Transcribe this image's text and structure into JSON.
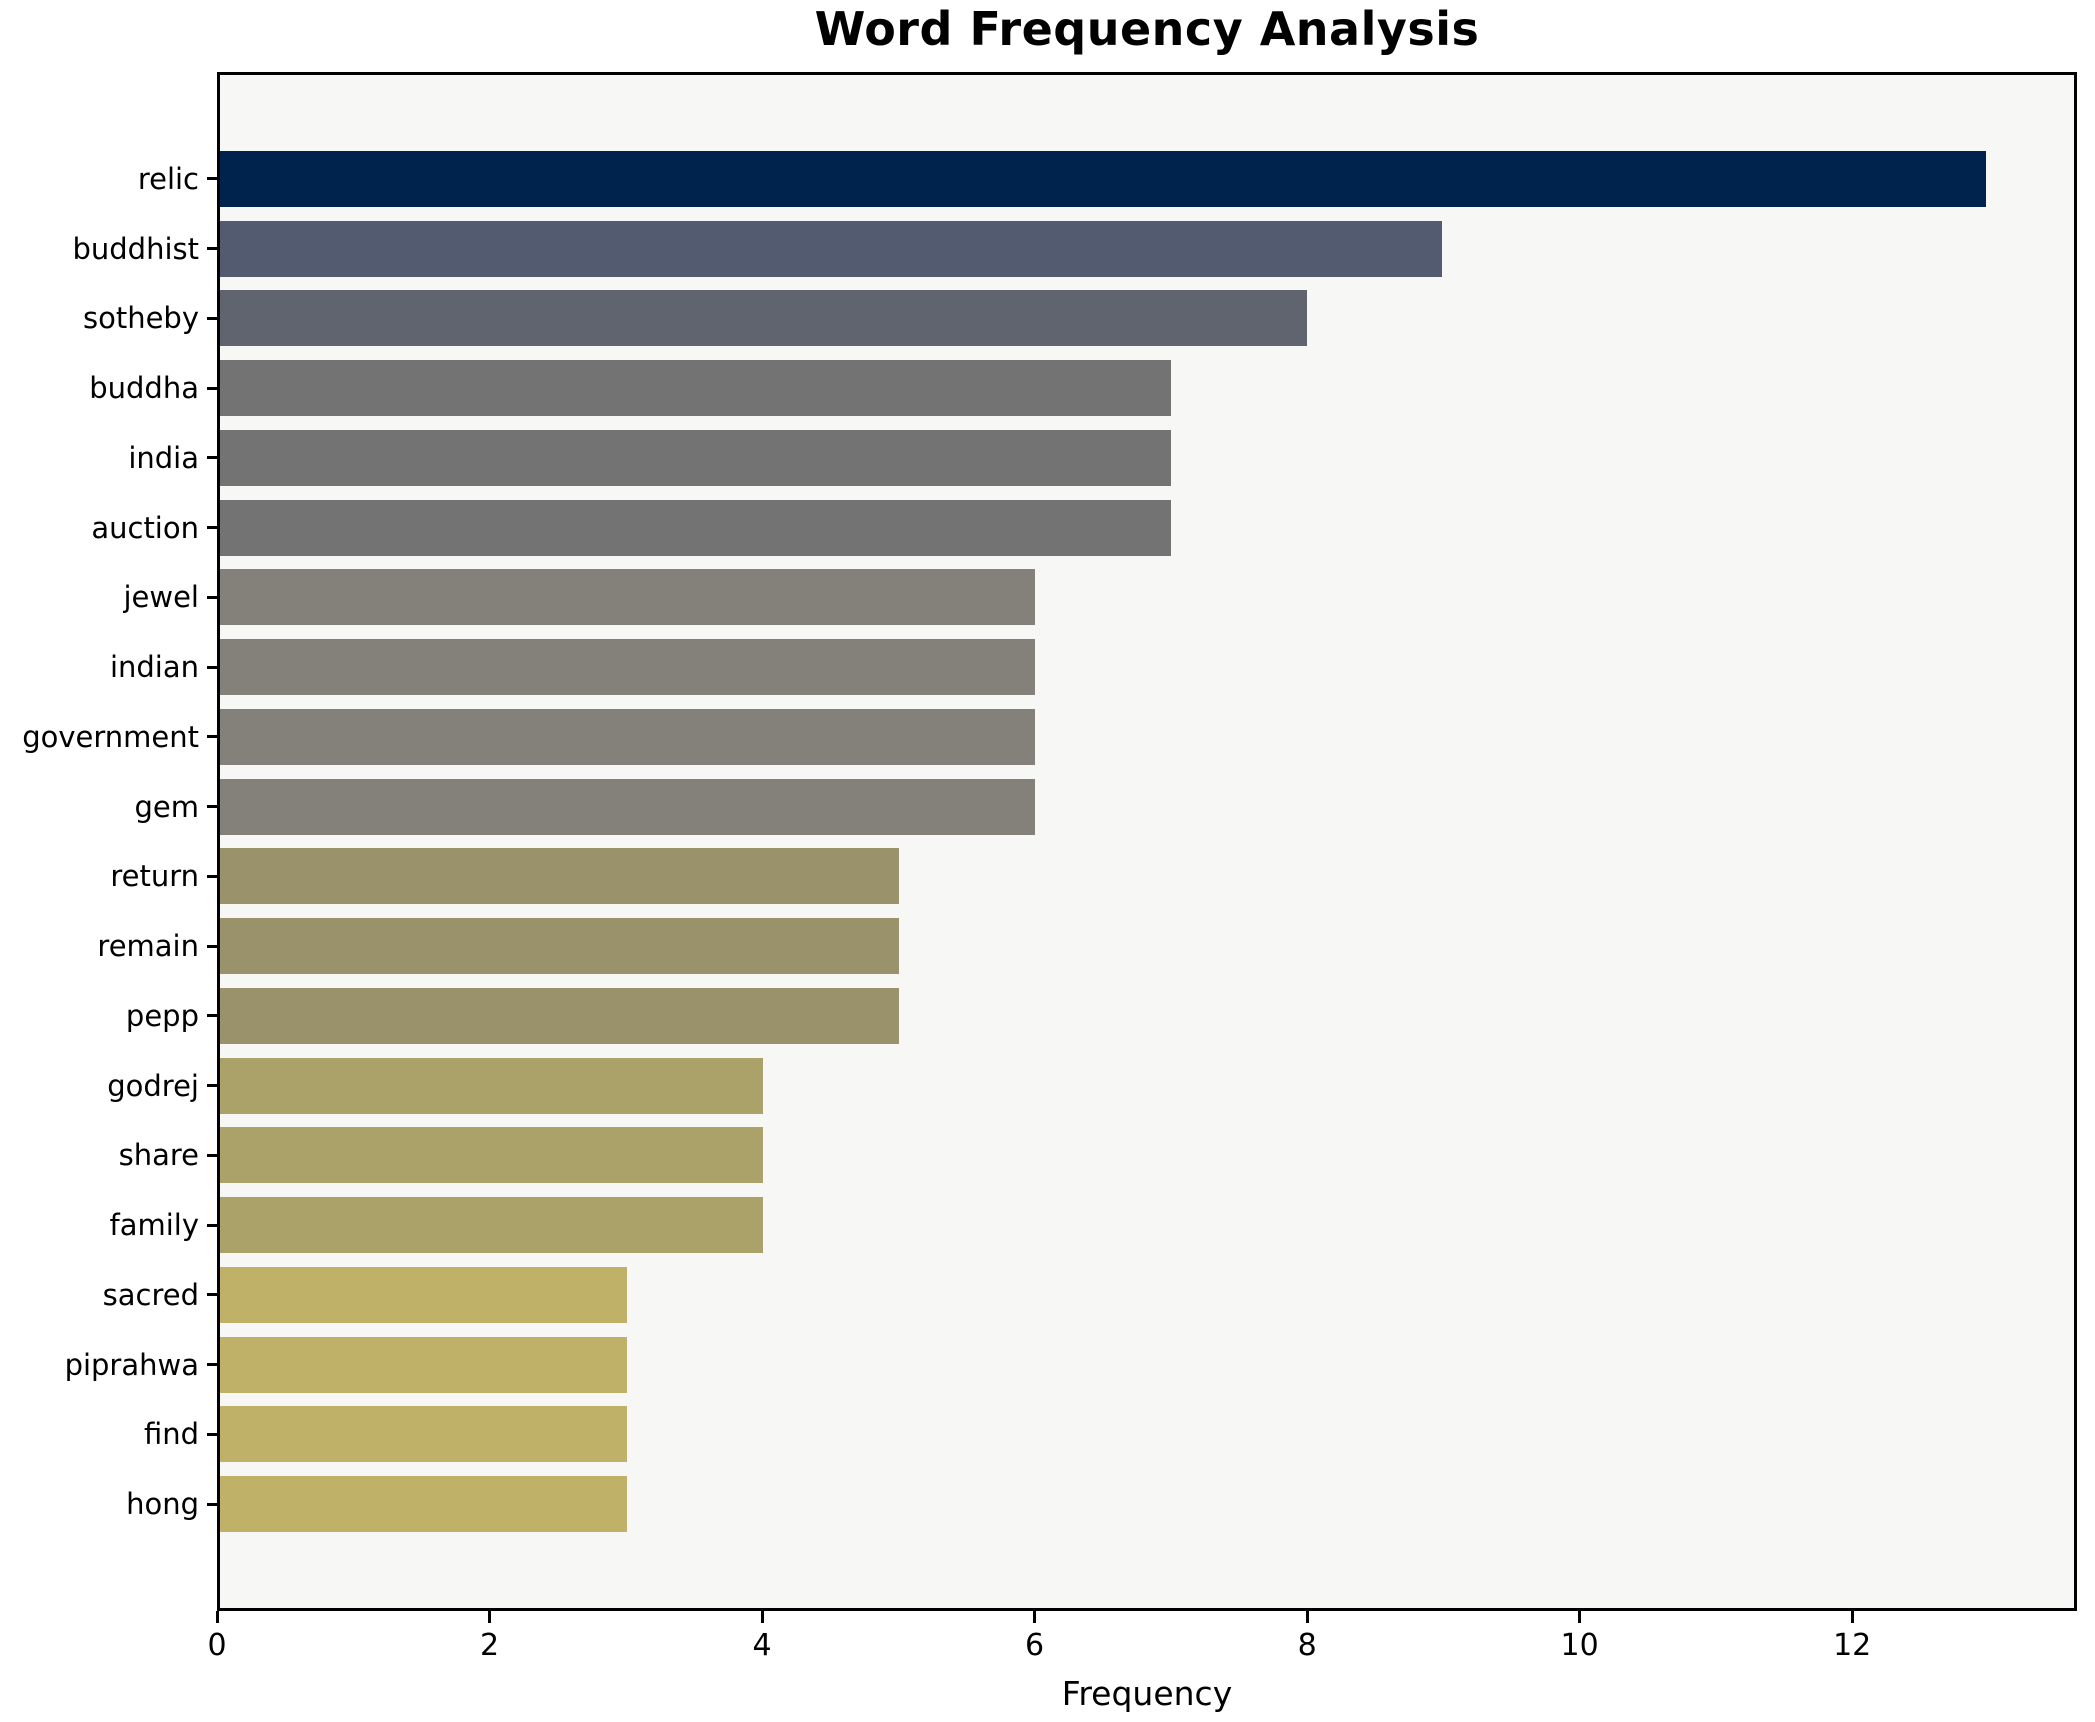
{
  "chart_data": {
    "type": "bar",
    "orientation": "horizontal",
    "title": "Word Frequency Analysis",
    "xlabel": "Frequency",
    "ylabel": "",
    "categories": [
      "relic",
      "buddhist",
      "sotheby",
      "buddha",
      "india",
      "auction",
      "jewel",
      "indian",
      "government",
      "gem",
      "return",
      "remain",
      "pepp",
      "godrej",
      "share",
      "family",
      "sacred",
      "piprahwa",
      "find",
      "hong"
    ],
    "values": [
      13,
      9,
      8,
      7,
      7,
      7,
      6,
      6,
      6,
      6,
      5,
      5,
      5,
      4,
      4,
      4,
      3,
      3,
      3,
      3
    ],
    "bar_colors": [
      "#00234e",
      "#535b70",
      "#60646f",
      "#727372",
      "#727372",
      "#727372",
      "#84817a",
      "#84817a",
      "#84817a",
      "#84817a",
      "#99926a",
      "#99926a",
      "#99926a",
      "#aba26a",
      "#aba26a",
      "#aba26a",
      "#c0b168",
      "#c0b168",
      "#c0b168",
      "#c0b168"
    ],
    "x_ticks": [
      0,
      2,
      4,
      6,
      8,
      10,
      12
    ],
    "xlim": [
      0,
      13.65
    ],
    "grid": false,
    "legend": "none",
    "plot_background": "#f7f7f5",
    "figure_background": "#ffffff",
    "spine_color": "#000000"
  }
}
